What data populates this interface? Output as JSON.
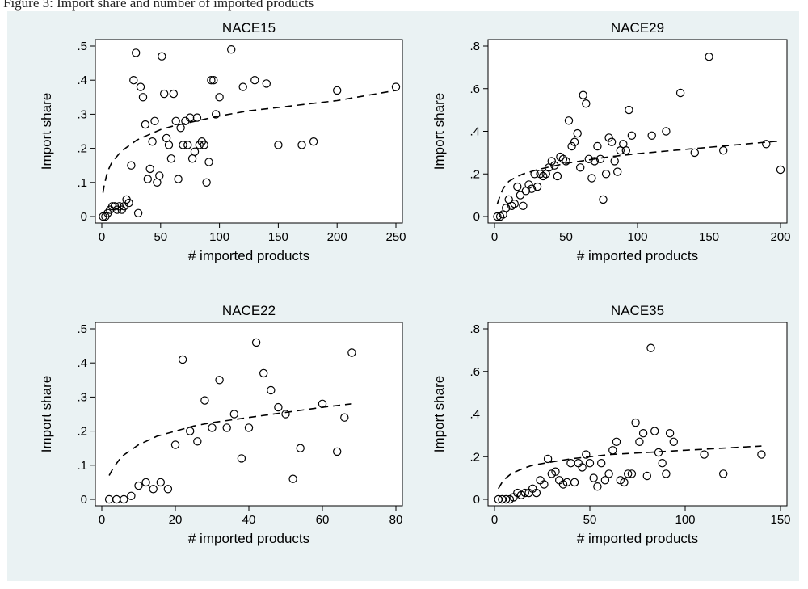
{
  "caption": "Figure 3: Import share and number of imported products",
  "colors": {
    "figure_background": "#eaf2f3",
    "plot_background": "#ffffff",
    "ink": "#000000"
  },
  "chart_data": [
    {
      "type": "scatter",
      "title": "NACE15",
      "xlabel": "# imported products",
      "ylabel": "Import share",
      "xlim": [
        0,
        250
      ],
      "ylim": [
        0,
        0.5
      ],
      "xticks": [
        "0",
        "50",
        "100",
        "150",
        "200",
        "250"
      ],
      "yticks": [
        ".5",
        ".4",
        ".3",
        ".2",
        ".1",
        "0"
      ],
      "grid": false,
      "legend": "none",
      "series": [
        {
          "marker": "hollow-circle",
          "x": [
            1,
            3,
            5,
            7,
            9,
            11,
            13,
            15,
            17,
            19,
            21,
            23,
            25,
            27,
            29,
            31,
            33,
            35,
            37,
            39,
            41,
            43,
            45,
            47,
            49,
            51,
            53,
            55,
            57,
            59,
            61,
            63,
            65,
            67,
            69,
            71,
            73,
            75,
            77,
            79,
            81,
            83,
            85,
            87,
            89,
            91,
            93,
            95,
            97,
            100,
            110,
            120,
            130,
            140,
            150,
            170,
            180,
            200,
            250
          ],
          "y": [
            0,
            0,
            0.01,
            0.02,
            0.03,
            0.03,
            0.02,
            0.03,
            0.02,
            0.03,
            0.05,
            0.04,
            0.15,
            0.4,
            0.48,
            0.01,
            0.38,
            0.35,
            0.27,
            0.11,
            0.14,
            0.22,
            0.28,
            0.1,
            0.12,
            0.47,
            0.36,
            0.23,
            0.21,
            0.17,
            0.36,
            0.28,
            0.11,
            0.26,
            0.21,
            0.28,
            0.21,
            0.29,
            0.17,
            0.19,
            0.29,
            0.21,
            0.22,
            0.21,
            0.1,
            0.16,
            0.4,
            0.4,
            0.3,
            0.35,
            0.49,
            0.38,
            0.4,
            0.39,
            0.21,
            0.21,
            0.22,
            0.37,
            0.38
          ]
        }
      ],
      "fit": {
        "style": "dashed",
        "x": [
          1,
          2,
          4,
          6,
          8,
          10,
          15,
          20,
          30,
          40,
          50,
          60,
          80,
          100,
          125,
          150,
          175,
          200,
          225,
          250
        ],
        "y": [
          0.07,
          0.09,
          0.12,
          0.14,
          0.155,
          0.165,
          0.185,
          0.2,
          0.225,
          0.24,
          0.255,
          0.265,
          0.28,
          0.295,
          0.31,
          0.32,
          0.33,
          0.34,
          0.355,
          0.37
        ]
      }
    },
    {
      "type": "scatter",
      "title": "NACE29",
      "xlabel": "# imported products",
      "ylabel": "Import share",
      "xlim": [
        0,
        200
      ],
      "ylim": [
        0,
        0.8
      ],
      "xticks": [
        "0",
        "50",
        "100",
        "150",
        "200"
      ],
      "yticks": [
        ".8",
        ".6",
        ".4",
        ".2",
        "0"
      ],
      "grid": false,
      "legend": "none",
      "series": [
        {
          "marker": "hollow-circle",
          "x": [
            2,
            4,
            6,
            8,
            10,
            12,
            14,
            16,
            18,
            20,
            22,
            24,
            26,
            28,
            30,
            32,
            34,
            36,
            38,
            40,
            42,
            44,
            46,
            48,
            50,
            52,
            54,
            56,
            58,
            60,
            62,
            64,
            66,
            68,
            70,
            72,
            74,
            76,
            78,
            80,
            82,
            84,
            86,
            88,
            90,
            92,
            94,
            96,
            110,
            120,
            130,
            140,
            150,
            160,
            190,
            200
          ],
          "y": [
            0,
            0,
            0.01,
            0.04,
            0.08,
            0.05,
            0.06,
            0.14,
            0.1,
            0.05,
            0.12,
            0.15,
            0.13,
            0.2,
            0.14,
            0.2,
            0.19,
            0.2,
            0.23,
            0.26,
            0.24,
            0.19,
            0.28,
            0.27,
            0.26,
            0.45,
            0.33,
            0.35,
            0.39,
            0.23,
            0.57,
            0.53,
            0.27,
            0.18,
            0.26,
            0.33,
            0.27,
            0.08,
            0.2,
            0.37,
            0.35,
            0.26,
            0.21,
            0.31,
            0.34,
            0.31,
            0.5,
            0.38,
            0.38,
            0.4,
            0.58,
            0.3,
            0.75,
            0.31,
            0.34,
            0.22
          ]
        }
      ],
      "fit": {
        "style": "dashed",
        "x": [
          2,
          4,
          6,
          8,
          10,
          15,
          20,
          30,
          40,
          50,
          60,
          80,
          100,
          125,
          150,
          175,
          200
        ],
        "y": [
          0.06,
          0.1,
          0.13,
          0.15,
          0.165,
          0.185,
          0.2,
          0.22,
          0.235,
          0.25,
          0.26,
          0.28,
          0.295,
          0.31,
          0.325,
          0.34,
          0.355
        ]
      }
    },
    {
      "type": "scatter",
      "title": "NACE22",
      "xlabel": "# imported products",
      "ylabel": "Import share",
      "xlim": [
        0,
        80
      ],
      "ylim": [
        0,
        0.5
      ],
      "xticks": [
        "0",
        "20",
        "40",
        "60",
        "80"
      ],
      "yticks": [
        ".5",
        ".4",
        ".3",
        ".2",
        ".1",
        "0"
      ],
      "grid": false,
      "legend": "none",
      "series": [
        {
          "marker": "hollow-circle",
          "x": [
            2,
            4,
            6,
            8,
            10,
            12,
            14,
            16,
            18,
            20,
            22,
            24,
            26,
            28,
            30,
            32,
            34,
            36,
            38,
            40,
            42,
            44,
            46,
            48,
            50,
            52,
            54,
            60,
            64,
            66,
            68
          ],
          "y": [
            0,
            0,
            0,
            0.01,
            0.04,
            0.05,
            0.03,
            0.05,
            0.03,
            0.16,
            0.41,
            0.2,
            0.17,
            0.29,
            0.21,
            0.35,
            0.21,
            0.25,
            0.12,
            0.21,
            0.46,
            0.37,
            0.32,
            0.27,
            0.25,
            0.06,
            0.15,
            0.28,
            0.14,
            0.24,
            0.43
          ]
        }
      ],
      "fit": {
        "style": "dashed",
        "x": [
          2,
          3,
          4,
          5,
          6,
          8,
          10,
          15,
          20,
          25,
          30,
          40,
          50,
          60,
          68
        ],
        "y": [
          0.07,
          0.09,
          0.105,
          0.12,
          0.13,
          0.145,
          0.16,
          0.185,
          0.2,
          0.215,
          0.225,
          0.24,
          0.255,
          0.27,
          0.28
        ]
      }
    },
    {
      "type": "scatter",
      "title": "NACE35",
      "xlabel": "# imported products",
      "ylabel": "Import share",
      "xlim": [
        0,
        150
      ],
      "ylim": [
        0,
        0.8
      ],
      "xticks": [
        "0",
        "50",
        "100",
        "150"
      ],
      "yticks": [
        ".8",
        ".6",
        ".4",
        ".2",
        "0"
      ],
      "grid": false,
      "legend": "none",
      "series": [
        {
          "marker": "hollow-circle",
          "x": [
            2,
            4,
            6,
            8,
            10,
            12,
            14,
            16,
            18,
            20,
            22,
            24,
            26,
            28,
            30,
            32,
            34,
            36,
            38,
            40,
            42,
            44,
            46,
            48,
            50,
            52,
            54,
            56,
            58,
            60,
            62,
            64,
            66,
            68,
            70,
            72,
            74,
            76,
            78,
            80,
            82,
            84,
            86,
            88,
            90,
            92,
            94,
            110,
            120,
            140
          ],
          "y": [
            0,
            0,
            0,
            0,
            0.01,
            0.03,
            0.02,
            0.03,
            0.03,
            0.05,
            0.03,
            0.09,
            0.07,
            0.19,
            0.12,
            0.13,
            0.09,
            0.07,
            0.08,
            0.17,
            0.08,
            0.17,
            0.15,
            0.21,
            0.17,
            0.1,
            0.06,
            0.17,
            0.09,
            0.12,
            0.23,
            0.27,
            0.09,
            0.08,
            0.12,
            0.12,
            0.36,
            0.27,
            0.31,
            0.11,
            0.71,
            0.32,
            0.22,
            0.17,
            0.12,
            0.31,
            0.27,
            0.21,
            0.12,
            0.21
          ]
        }
      ],
      "fit": {
        "style": "dashed",
        "x": [
          2,
          4,
          6,
          8,
          10,
          15,
          20,
          30,
          40,
          50,
          60,
          80,
          100,
          120,
          140
        ],
        "y": [
          0.05,
          0.08,
          0.1,
          0.115,
          0.125,
          0.145,
          0.16,
          0.175,
          0.19,
          0.2,
          0.21,
          0.22,
          0.23,
          0.24,
          0.25
        ]
      }
    }
  ]
}
